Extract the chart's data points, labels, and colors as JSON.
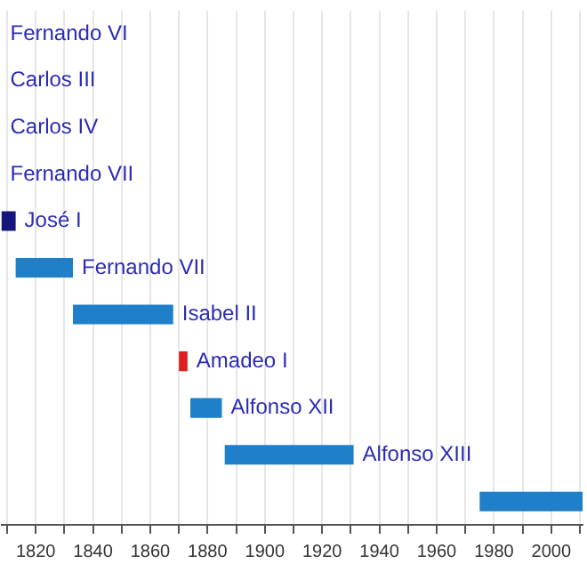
{
  "chart_data": {
    "type": "bar",
    "orientation": "horizontal",
    "categories": [
      "Fernando VI",
      "Carlos III",
      "Carlos IV",
      "Fernando VII",
      "José I",
      "Fernando VII",
      "Isabel II",
      "Amadeo I",
      "Alfonso XII",
      "Alfonso XIII",
      null
    ],
    "base": [
      null,
      null,
      null,
      null,
      1808,
      1813,
      1833,
      1870,
      1874,
      1886,
      1975
    ],
    "values": [
      null,
      null,
      null,
      null,
      5,
      20,
      35,
      3,
      11,
      45,
      36
    ],
    "colors": [
      "#1f7fc8",
      "#1f7fc8",
      "#1f7fc8",
      "#1f7fc8",
      "#16167a",
      "#1f7fc8",
      "#1f7fc8",
      "#e02020",
      "#1f7fc8",
      "#1f7fc8",
      "#1f7fc8"
    ],
    "xlim": [
      1808,
      2011
    ],
    "xticks": [
      {
        "value": 1810,
        "label": null
      },
      1820,
      {
        "value": 1830,
        "label": null
      },
      1840,
      {
        "value": 1850,
        "label": null
      },
      1860,
      {
        "value": 1870,
        "label": null
      },
      1880,
      {
        "value": 1890,
        "label": null
      },
      1900,
      {
        "value": 1910,
        "label": null
      },
      1920,
      {
        "value": 1930,
        "label": null
      },
      1940,
      {
        "value": 1950,
        "label": null
      },
      1960,
      {
        "value": 1970,
        "label": null
      },
      1980,
      {
        "value": 1990,
        "label": null
      },
      2000,
      {
        "value": 2010,
        "label": null
      }
    ],
    "grid": "x",
    "legend": false
  }
}
